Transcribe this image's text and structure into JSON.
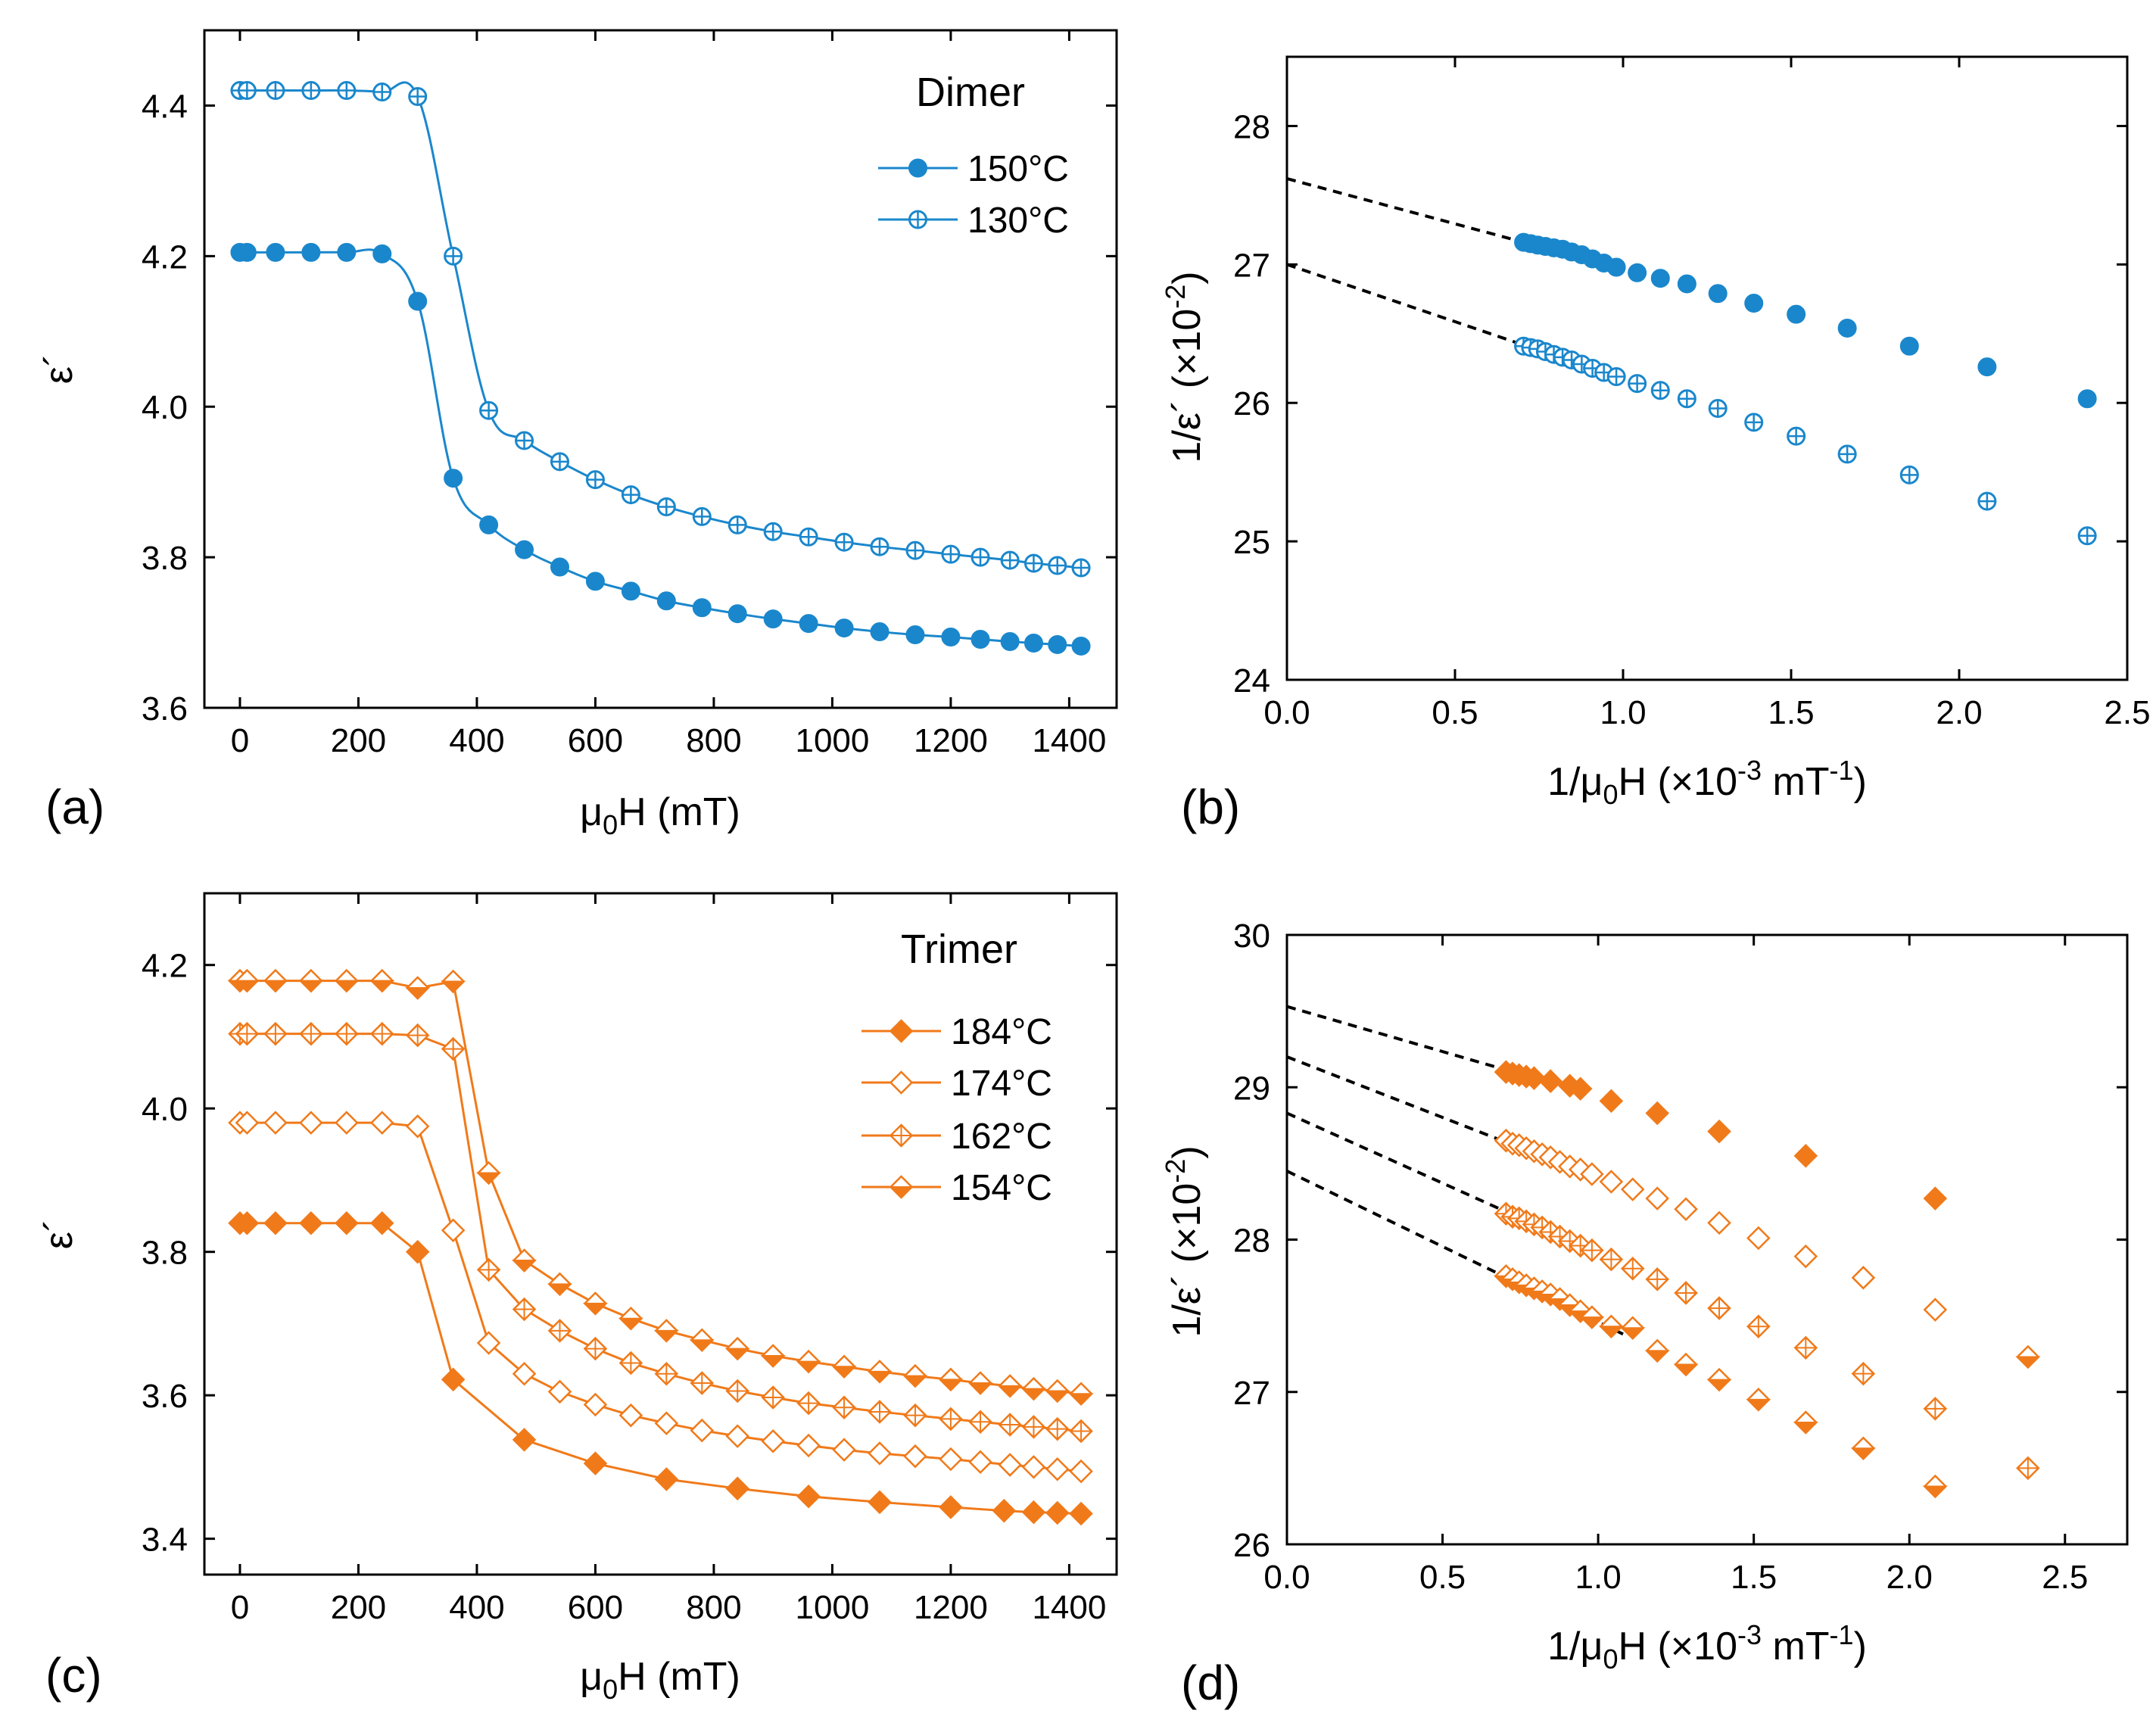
{
  "colors": {
    "dimer": "#1a87cc",
    "trimer": "#f07a1a",
    "fit": "#000000"
  },
  "chart_data": [
    {
      "type": "line",
      "panel_label": "(a)",
      "xlabel": {
        "base": "μ",
        "sub": "0",
        "rest": "H (mT)"
      },
      "ylabel": "ε´",
      "xlim": [
        -60,
        1480
      ],
      "ylim": [
        3.6,
        4.5
      ],
      "xticks": [
        0,
        200,
        400,
        600,
        800,
        1000,
        1200,
        1400
      ],
      "xtick_labels": [
        "0",
        "200",
        "400",
        "600",
        "800",
        "1000",
        "1200",
        "1400"
      ],
      "yticks": [
        3.6,
        3.8,
        4.0,
        4.2,
        4.4
      ],
      "ytick_labels": [
        "3.6",
        "3.8",
        "4.0",
        "4.2",
        "4.4"
      ],
      "legend_title": "Dimer",
      "series": [
        {
          "name": "150°C",
          "marker": "circle-filled",
          "smooth": true,
          "x": [
            0,
            12,
            60,
            120,
            180,
            240,
            300,
            360,
            420,
            480,
            540,
            600,
            660,
            720,
            780,
            840,
            900,
            960,
            1020,
            1080,
            1140,
            1200,
            1250,
            1300,
            1340,
            1380,
            1420
          ],
          "y": [
            4.205,
            4.205,
            4.205,
            4.205,
            4.205,
            4.203,
            4.14,
            3.905,
            3.843,
            3.81,
            3.787,
            3.768,
            3.755,
            3.742,
            3.733,
            3.725,
            3.718,
            3.712,
            3.706,
            3.701,
            3.697,
            3.694,
            3.691,
            3.688,
            3.686,
            3.684,
            3.682
          ]
        },
        {
          "name": "130°C",
          "marker": "circle-crossed",
          "smooth": true,
          "x": [
            0,
            12,
            60,
            120,
            180,
            240,
            300,
            360,
            420,
            480,
            540,
            600,
            660,
            720,
            780,
            840,
            900,
            960,
            1020,
            1080,
            1140,
            1200,
            1250,
            1300,
            1340,
            1380,
            1420
          ],
          "y": [
            4.42,
            4.42,
            4.42,
            4.42,
            4.42,
            4.418,
            4.412,
            4.2,
            3.995,
            3.955,
            3.927,
            3.903,
            3.883,
            3.867,
            3.854,
            3.843,
            3.834,
            3.827,
            3.82,
            3.814,
            3.809,
            3.804,
            3.8,
            3.796,
            3.792,
            3.789,
            3.786
          ]
        }
      ]
    },
    {
      "type": "scatter",
      "panel_label": "(b)",
      "xlabel": {
        "base": "1/μ",
        "sub": "0",
        "rest": "H (×10",
        "sup": "-3",
        "rest2": " mT",
        "sup2": "-1",
        "rest3": ")"
      },
      "ylabel": {
        "base": "1/ε´ (×10",
        "sup": "-2",
        "rest": ")"
      },
      "xlim": [
        0,
        2.5
      ],
      "ylim": [
        24,
        28.5
      ],
      "xticks": [
        0,
        0.5,
        1.0,
        1.5,
        2.0,
        2.5
      ],
      "xtick_labels": [
        "0.0",
        "0.5",
        "1.0",
        "1.5",
        "2.0",
        "2.5"
      ],
      "yticks": [
        24,
        25,
        26,
        27,
        28
      ],
      "ytick_labels": [
        "24",
        "25",
        "26",
        "27",
        "28"
      ],
      "series": [
        {
          "name": "150°C",
          "marker": "circle-filled",
          "x": [
            0.704,
            0.725,
            0.746,
            0.769,
            0.794,
            0.82,
            0.847,
            0.877,
            0.909,
            0.943,
            0.98,
            1.042,
            1.111,
            1.19,
            1.282,
            1.389,
            1.515,
            1.667,
            1.852,
            2.083,
            2.381
          ],
          "y": [
            27.16,
            27.15,
            27.14,
            27.13,
            27.12,
            27.11,
            27.09,
            27.07,
            27.04,
            27.01,
            26.98,
            26.94,
            26.9,
            26.86,
            26.79,
            26.72,
            26.64,
            26.54,
            26.41,
            26.26,
            26.03
          ]
        },
        {
          "name": "130°C",
          "marker": "circle-crossed",
          "x": [
            0.704,
            0.725,
            0.746,
            0.769,
            0.794,
            0.82,
            0.847,
            0.877,
            0.909,
            0.943,
            0.98,
            1.042,
            1.111,
            1.19,
            1.282,
            1.389,
            1.515,
            1.667,
            1.852,
            2.083,
            2.381
          ],
          "y": [
            26.41,
            26.4,
            26.39,
            26.37,
            26.35,
            26.33,
            26.31,
            26.28,
            26.25,
            26.22,
            26.19,
            26.14,
            26.09,
            26.03,
            25.96,
            25.86,
            25.76,
            25.63,
            25.48,
            25.29,
            25.04
          ]
        }
      ],
      "fits": [
        {
          "x": [
            0,
            0.98
          ],
          "y": [
            27.62,
            26.98
          ]
        },
        {
          "x": [
            0,
            0.98
          ],
          "y": [
            27.0,
            26.19
          ]
        }
      ]
    },
    {
      "type": "line",
      "panel_label": "(c)",
      "xlabel": {
        "base": "μ",
        "sub": "0",
        "rest": "H (mT)"
      },
      "ylabel": "ε´",
      "xlim": [
        -60,
        1480
      ],
      "ylim": [
        3.35,
        4.3
      ],
      "xticks": [
        0,
        200,
        400,
        600,
        800,
        1000,
        1200,
        1400
      ],
      "xtick_labels": [
        "0",
        "200",
        "400",
        "600",
        "800",
        "1000",
        "1200",
        "1400"
      ],
      "yticks": [
        3.4,
        3.6,
        3.8,
        4.0,
        4.2
      ],
      "ytick_labels": [
        "3.4",
        "3.6",
        "3.8",
        "4.0",
        "4.2"
      ],
      "legend_title": "Trimer",
      "series": [
        {
          "name": "184°C",
          "marker": "diamond-filled",
          "smooth": false,
          "x": [
            0,
            12,
            60,
            120,
            180,
            240,
            300,
            360,
            480,
            600,
            720,
            840,
            960,
            1080,
            1200,
            1290,
            1340,
            1380,
            1420
          ],
          "y": [
            3.84,
            3.84,
            3.84,
            3.84,
            3.84,
            3.84,
            3.8,
            3.622,
            3.538,
            3.505,
            3.483,
            3.47,
            3.459,
            3.451,
            3.444,
            3.439,
            3.437,
            3.436,
            3.435
          ]
        },
        {
          "name": "174°C",
          "marker": "diamond-open",
          "smooth": false,
          "x": [
            0,
            12,
            60,
            120,
            180,
            240,
            300,
            360,
            420,
            480,
            540,
            600,
            660,
            720,
            780,
            840,
            900,
            960,
            1020,
            1080,
            1140,
            1200,
            1250,
            1300,
            1340,
            1380,
            1420
          ],
          "y": [
            3.98,
            3.98,
            3.98,
            3.98,
            3.98,
            3.98,
            3.975,
            3.83,
            3.673,
            3.63,
            3.605,
            3.587,
            3.572,
            3.561,
            3.551,
            3.543,
            3.536,
            3.53,
            3.524,
            3.519,
            3.515,
            3.511,
            3.507,
            3.503,
            3.5,
            3.497,
            3.494
          ]
        },
        {
          "name": "162°C",
          "marker": "diamond-crossed",
          "smooth": false,
          "x": [
            0,
            12,
            60,
            120,
            180,
            240,
            300,
            360,
            420,
            480,
            540,
            600,
            660,
            720,
            780,
            840,
            900,
            960,
            1020,
            1080,
            1140,
            1200,
            1250,
            1300,
            1340,
            1380,
            1420
          ],
          "y": [
            4.104,
            4.104,
            4.104,
            4.104,
            4.104,
            4.104,
            4.102,
            4.083,
            3.775,
            3.72,
            3.69,
            3.665,
            3.645,
            3.63,
            3.617,
            3.606,
            3.597,
            3.589,
            3.583,
            3.577,
            3.572,
            3.567,
            3.563,
            3.559,
            3.556,
            3.553,
            3.55
          ]
        },
        {
          "name": "154°C",
          "marker": "diamond-half",
          "smooth": false,
          "x": [
            0,
            12,
            60,
            120,
            180,
            240,
            300,
            360,
            420,
            480,
            540,
            600,
            660,
            720,
            780,
            840,
            900,
            960,
            1020,
            1080,
            1140,
            1200,
            1250,
            1300,
            1340,
            1380,
            1420
          ],
          "y": [
            4.178,
            4.178,
            4.178,
            4.178,
            4.178,
            4.178,
            4.168,
            4.177,
            3.91,
            3.788,
            3.755,
            3.728,
            3.707,
            3.69,
            3.677,
            3.665,
            3.655,
            3.647,
            3.64,
            3.633,
            3.627,
            3.622,
            3.617,
            3.613,
            3.609,
            3.606,
            3.602
          ]
        }
      ]
    },
    {
      "type": "scatter",
      "panel_label": "(d)",
      "xlabel": {
        "base": "1/μ",
        "sub": "0",
        "rest": "H (×10",
        "sup": "-3",
        "rest2": " mT",
        "sup2": "-1",
        "rest3": ")"
      },
      "ylabel": {
        "base": "1/ε´ (×10",
        "sup": "-2",
        "rest": ")"
      },
      "xlim": [
        0,
        2.7
      ],
      "ylim": [
        26,
        30
      ],
      "xticks": [
        0,
        0.5,
        1.0,
        1.5,
        2.0,
        2.5
      ],
      "xtick_labels": [
        "0.0",
        "0.5",
        "1.0",
        "1.5",
        "2.0",
        "2.5"
      ],
      "yticks": [
        26,
        27,
        28,
        29,
        30
      ],
      "ytick_labels": [
        "26",
        "27",
        "28",
        "29",
        "30"
      ],
      "series": [
        {
          "name": "184°C",
          "marker": "diamond-filled",
          "x": [
            0.704,
            0.725,
            0.746,
            0.769,
            0.794,
            0.847,
            0.909,
            0.943,
            1.042,
            1.19,
            1.389,
            1.667,
            2.083
          ],
          "y": [
            29.1,
            29.09,
            29.08,
            29.07,
            29.06,
            29.04,
            29.01,
            28.99,
            28.91,
            28.83,
            28.71,
            28.55,
            28.27
          ]
        },
        {
          "name": "174°C",
          "marker": "diamond-open",
          "x": [
            0.704,
            0.725,
            0.746,
            0.769,
            0.794,
            0.82,
            0.847,
            0.877,
            0.909,
            0.943,
            0.98,
            1.042,
            1.111,
            1.19,
            1.282,
            1.389,
            1.515,
            1.667,
            1.852,
            2.083
          ],
          "y": [
            28.65,
            28.63,
            28.62,
            28.6,
            28.58,
            28.56,
            28.54,
            28.51,
            28.48,
            28.46,
            28.43,
            28.38,
            28.33,
            28.27,
            28.2,
            28.11,
            28.01,
            27.89,
            27.75,
            27.54
          ]
        },
        {
          "name": "162°C",
          "marker": "diamond-crossed",
          "x": [
            0.704,
            0.725,
            0.746,
            0.769,
            0.794,
            0.82,
            0.847,
            0.877,
            0.909,
            0.943,
            0.98,
            1.042,
            1.111,
            1.19,
            1.282,
            1.389,
            1.515,
            1.667,
            1.852,
            2.083,
            2.381
          ],
          "y": [
            28.17,
            28.15,
            28.14,
            28.12,
            28.1,
            28.08,
            28.05,
            28.02,
            27.99,
            27.96,
            27.93,
            27.87,
            27.81,
            27.74,
            27.65,
            27.55,
            27.43,
            27.29,
            27.12,
            26.89,
            26.5
          ]
        },
        {
          "name": "154°C",
          "marker": "diamond-half",
          "x": [
            0.704,
            0.725,
            0.746,
            0.769,
            0.794,
            0.82,
            0.847,
            0.877,
            0.909,
            0.943,
            0.98,
            1.042,
            1.111,
            1.19,
            1.282,
            1.389,
            1.515,
            1.667,
            1.852,
            2.083,
            2.381
          ],
          "y": [
            27.76,
            27.74,
            27.72,
            27.7,
            27.68,
            27.66,
            27.64,
            27.61,
            27.57,
            27.53,
            27.49,
            27.43,
            27.42,
            27.27,
            27.18,
            27.08,
            26.95,
            26.8,
            26.63,
            26.38,
            27.23
          ]
        }
      ],
      "fits": [
        {
          "x": [
            0,
            0.93
          ],
          "y": [
            29.53,
            28.98
          ]
        },
        {
          "x": [
            0,
            0.98
          ],
          "y": [
            29.2,
            28.42
          ]
        },
        {
          "x": [
            0,
            0.98
          ],
          "y": [
            28.83,
            27.93
          ]
        },
        {
          "x": [
            0,
            1.08
          ],
          "y": [
            28.45,
            27.38
          ]
        }
      ]
    }
  ]
}
